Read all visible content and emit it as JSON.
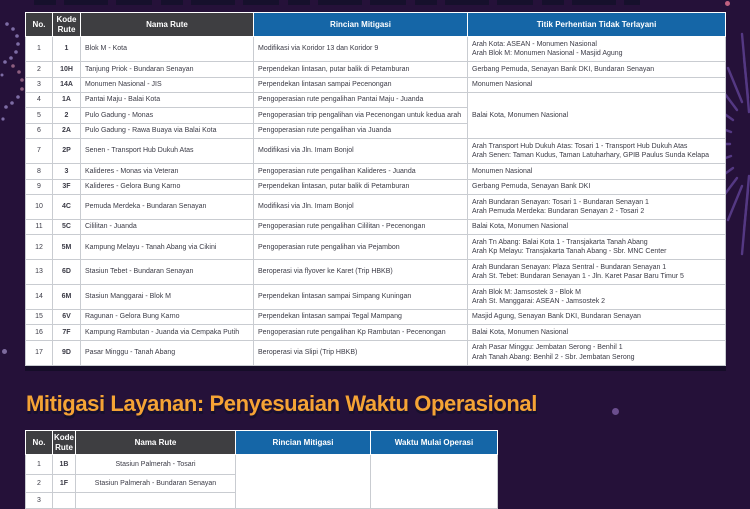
{
  "page": {
    "colors": {
      "background": "#251139",
      "header_dark": "#3e3e41",
      "header_blue": "#1566a7",
      "heading_orange": "#f5a335",
      "heading_shadow": "#17102e",
      "cell_text": "#3b3b46",
      "firework_purple": "#5a3d8c",
      "confetti_lavender": "#8d7cb8",
      "confetti_pink": "#c06080"
    }
  },
  "section2_title": "Mitigasi Layanan: Penyesuaian Waktu Operasional",
  "table1": {
    "headers": {
      "no": "No.",
      "kode": "Kode Rute",
      "nama": "Nama Rute",
      "rincian": "Rincian Mitigasi",
      "titik": "Titik Perhentian Tidak Terlayani"
    },
    "rows": [
      {
        "no": "1",
        "kode": "1",
        "nama": "Blok M - Kota",
        "rincian": "Modifikasi via Koridor 13 dan Koridor 9",
        "titik": [
          "Arah Kota: ASEAN - Monumen Nasional",
          "Arah Blok M: Monumen Nasional - Masjid Agung"
        ]
      },
      {
        "no": "2",
        "kode": "10H",
        "nama": "Tanjung Priok - Bundaran Senayan",
        "rincian": "Perpendekan lintasan, putar balik di Petamburan",
        "titik": [
          "Gerbang Pemuda, Senayan Bank DKI, Bundaran Senayan"
        ]
      },
      {
        "no": "3",
        "kode": "14A",
        "nama": "Monumen Nasional - JIS",
        "rincian": "Perpendekan lintasan sampai Pecenongan",
        "titik": [
          "Monumen Nasional"
        ]
      },
      {
        "no": "4",
        "kode": "1A",
        "nama": "Pantai Maju - Balai Kota",
        "rincian": "Pengoperasian rute pengalihan Pantai Maju - Juanda",
        "titik": [
          "Balai Kota, Monumen Nasional"
        ],
        "titik_rowspan": 3
      },
      {
        "no": "5",
        "kode": "2",
        "nama": "Pulo Gadung - Monas",
        "rincian": "Pengoperasian trip pengalihan via Pecenongan untuk kedua arah",
        "titik": null
      },
      {
        "no": "6",
        "kode": "2A",
        "nama": "Pulo Gadung - Rawa Buaya via Balai Kota",
        "rincian": "Pengoperasian rute pengalihan via Juanda",
        "titik": null
      },
      {
        "no": "7",
        "kode": "2P",
        "nama": "Senen - Transport Hub Dukuh Atas",
        "rincian": "Modifikasi via Jln. Imam Bonjol",
        "titik": [
          "Arah Transport Hub Dukuh Atas: Tosari 1 - Transport Hub Dukuh Atas",
          "Arah Senen: Taman Kudus, Taman Latuharhary, GPIB Paulus Sunda Kelapa"
        ]
      },
      {
        "no": "8",
        "kode": "3",
        "nama": "Kalideres - Monas via Veteran",
        "rincian": "Pengoperasian rute pengalihan Kalideres - Juanda",
        "titik": [
          "Monumen Nasional"
        ]
      },
      {
        "no": "9",
        "kode": "3F",
        "nama": "Kalideres - Gelora Bung Karno",
        "rincian": "Perpendekan lintasan, putar balik di Petamburan",
        "titik": [
          "Gerbang Pemuda, Senayan Bank DKI"
        ]
      },
      {
        "no": "10",
        "kode": "4C",
        "nama": "Pemuda Merdeka - Bundaran Senayan",
        "rincian": "Modifikasi via Jln. Imam Bonjol",
        "titik": [
          "Arah Bundaran Senayan: Tosari 1 - Bundaran Senayan 1",
          "Arah Pemuda Merdeka: Bundaran Senayan 2 - Tosari 2"
        ]
      },
      {
        "no": "11",
        "kode": "5C",
        "nama": "Cililitan - Juanda",
        "rincian": "Pengoperasian rute pengalihan Cililitan - Pecenongan",
        "titik": [
          "Balai Kota, Monumen Nasional"
        ]
      },
      {
        "no": "12",
        "kode": "5M",
        "nama": "Kampung Melayu - Tanah Abang via Cikini",
        "rincian": "Pengoperasian rute pengalihan via Pejambon",
        "titik": [
          "Arah Tn Abang: Balai Kota 1 - Transjakarta Tanah Abang",
          "Arah Kp Melayu: Transjakarta Tanah Abang - Sbr. MNC Center"
        ]
      },
      {
        "no": "13",
        "kode": "6D",
        "nama": "Stasiun Tebet - Bundaran Senayan",
        "rincian": "Beroperasi via flyover ke Karet (Trip HBKB)",
        "titik": [
          "Arah Bundaran Senayan: Plaza Sentral - Bundaran Senayan 1",
          "Arah St. Tebet: Bundaran Senayan 1 - Jln. Karet Pasar Baru Timur 5"
        ]
      },
      {
        "no": "14",
        "kode": "6M",
        "nama": "Stasiun Manggarai - Blok M",
        "rincian": "Perpendekan lintasan sampai Simpang Kuningan",
        "titik": [
          "Arah Blok M: Jamsostek 3 - Blok M",
          "Arah St. Manggarai: ASEAN - Jamsostek 2"
        ]
      },
      {
        "no": "15",
        "kode": "6V",
        "nama": "Ragunan - Gelora Bung Karno",
        "rincian": "Perpendekan lintasan sampai Tegal Mampang",
        "titik": [
          "Masjid Agung, Senayan Bank DKI, Bundaran Senayan"
        ]
      },
      {
        "no": "16",
        "kode": "7F",
        "nama": "Kampung Rambutan - Juanda via Cempaka Putih",
        "rincian": "Pengoperasian rute pengalihan Kp Rambutan - Pecenongan",
        "titik": [
          "Balai Kota, Monumen Nasional"
        ]
      },
      {
        "no": "17",
        "kode": "9D",
        "nama": "Pasar Minggu - Tanah Abang",
        "rincian": "Beroperasi via Slipi (Trip HBKB)",
        "titik": [
          "Arah Pasar Minggu: Jembatan Serong - Benhil 1",
          "Arah Tanah Abang: Benhil 2 - Sbr. Jembatan Serong"
        ]
      }
    ]
  },
  "table2": {
    "headers": {
      "no": "No.",
      "kode": "Kode Rute",
      "nama": "Nama Rute",
      "rincian": "Rincian Mitigasi",
      "waktu": "Waktu Mulai Operasi"
    },
    "rows": [
      {
        "no": "1",
        "kode": "1B",
        "nama": "Stasiun Palmerah - Tosari"
      },
      {
        "no": "2",
        "kode": "1F",
        "nama": "Stasiun Palmerah - Bundaran Senayan"
      },
      {
        "no": "3",
        "kode": "",
        "nama": ""
      }
    ],
    "rincian_value": "",
    "waktu_value": ""
  }
}
